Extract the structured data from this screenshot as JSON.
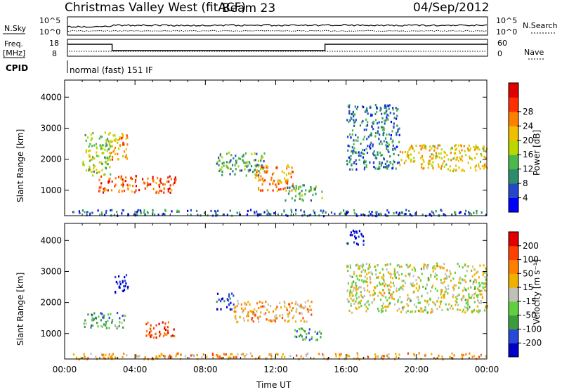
{
  "header": {
    "title": "Christmas Valley West (fitACF)",
    "beam": "Beam 23",
    "date": "04/Sep/2012"
  },
  "top_panels": {
    "nsky_label": "N.Sky",
    "nsky_ticks": [
      "10^5",
      "10^0"
    ],
    "nsearch_label": "N.Search",
    "nsearch_ticks": [
      "10^5",
      "10^0"
    ],
    "freq_label_line1": "Freq.",
    "freq_label_line2": "[MHz]",
    "freq_ticks": [
      "18",
      "8"
    ],
    "nave_label": "Nave",
    "nave_ticks": [
      "60",
      "0"
    ],
    "cpid_label": "CPID",
    "cpid_text": "normal (fast) 151 IF"
  },
  "chart_data": [
    {
      "type": "heatmap",
      "name": "power",
      "ylabel": "Slant Range [km]",
      "xlabel": "",
      "yticks": [
        "1000",
        "2000",
        "3000",
        "4000"
      ],
      "ylim": [
        180,
        4550
      ],
      "xlim": [
        0,
        24
      ],
      "colorbar": {
        "label": "Power [dB]",
        "ticks": [
          "4",
          "8",
          "12",
          "16",
          "20",
          "24",
          "28"
        ],
        "colors": [
          "#0000ff",
          "#2448c8",
          "#2c8c6c",
          "#4cb84c",
          "#b8d800",
          "#f0c000",
          "#ff8000",
          "#ff3000",
          "#e00000"
        ]
      },
      "regions": [
        {
          "t": [
            1.0,
            2.6
          ],
          "r": [
            1500,
            2900
          ],
          "level": 0.45
        },
        {
          "t": [
            1.9,
            6.3
          ],
          "r": [
            950,
            1500
          ],
          "level": 0.8
        },
        {
          "t": [
            2.4,
            3.6
          ],
          "r": [
            2000,
            2950
          ],
          "level": 0.65
        },
        {
          "t": [
            8.6,
            11.4
          ],
          "r": [
            1500,
            2250
          ],
          "level": 0.35
        },
        {
          "t": [
            10.8,
            13.0
          ],
          "r": [
            1000,
            1850
          ],
          "level": 0.7
        },
        {
          "t": [
            12.5,
            14.6
          ],
          "r": [
            700,
            1200
          ],
          "level": 0.35
        },
        {
          "t": [
            16.0,
            19.0
          ],
          "r": [
            1700,
            3800
          ],
          "level": 0.25
        },
        {
          "t": [
            19.0,
            24.0
          ],
          "r": [
            1650,
            2500
          ],
          "level": 0.6
        },
        {
          "t": [
            0.4,
            24.0
          ],
          "r": [
            200,
            400
          ],
          "level": 0.2
        }
      ]
    },
    {
      "type": "heatmap",
      "name": "velocity",
      "ylabel": "Slant Range [km]",
      "xlabel": "Time UT",
      "xticks": [
        "00:00",
        "04:00",
        "08:00",
        "12:00",
        "16:00",
        "20:00",
        "00:00"
      ],
      "yticks": [
        "1000",
        "2000",
        "3000",
        "4000"
      ],
      "ylim": [
        180,
        4550
      ],
      "xlim": [
        0,
        24
      ],
      "colorbar": {
        "label": "Velocity [m s⁻¹]",
        "ticks": [
          "200",
          "100",
          "50",
          "15",
          "-15",
          "-50",
          "-100",
          "-200"
        ],
        "colors": [
          "#0000c8",
          "#2848d8",
          "#3c9c3c",
          "#60d040",
          "#c0c0b8",
          "#f0b000",
          "#ff8000",
          "#ff4000",
          "#e00000"
        ]
      },
      "regions": [
        {
          "t": [
            1.0,
            3.4
          ],
          "r": [
            1200,
            1700
          ],
          "level": 0.3
        },
        {
          "t": [
            2.8,
            3.6
          ],
          "r": [
            2300,
            2950
          ],
          "level": 0.05
        },
        {
          "t": [
            4.5,
            6.2
          ],
          "r": [
            900,
            1400
          ],
          "level": 0.85
        },
        {
          "t": [
            8.6,
            9.6
          ],
          "r": [
            1800,
            2350
          ],
          "level": 0.1
        },
        {
          "t": [
            9.6,
            14.0
          ],
          "r": [
            1400,
            2100
          ],
          "level": 0.65
        },
        {
          "t": [
            13.0,
            14.6
          ],
          "r": [
            800,
            1200
          ],
          "level": 0.3
        },
        {
          "t": [
            16.0,
            17.0
          ],
          "r": [
            3900,
            4400
          ],
          "level": 0.05
        },
        {
          "t": [
            16.0,
            24.0
          ],
          "r": [
            1700,
            3300
          ],
          "level": 0.5
        },
        {
          "t": [
            0.4,
            24.0
          ],
          "r": [
            200,
            400
          ],
          "level": 0.65
        }
      ]
    }
  ]
}
